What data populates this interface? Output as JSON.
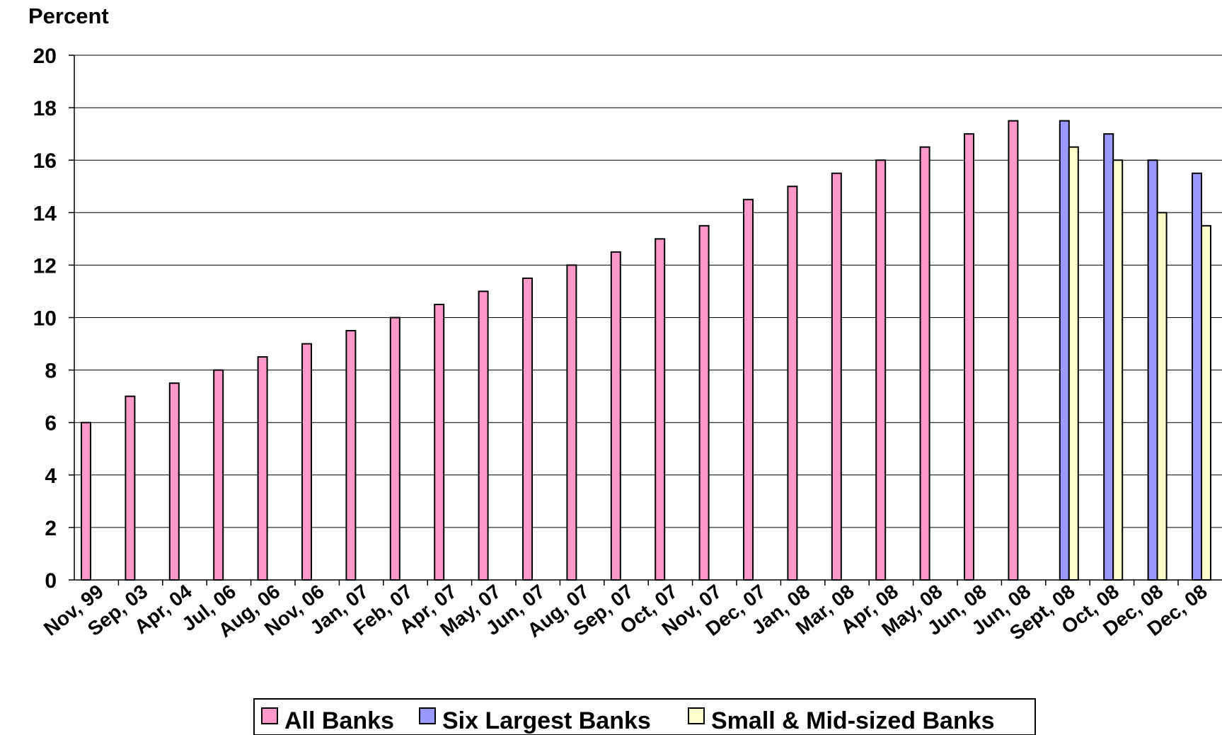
{
  "chart_data": {
    "type": "bar",
    "ylabel": "Percent",
    "xlabel": "",
    "ylim": [
      0,
      20
    ],
    "yticks": [
      0,
      2,
      4,
      6,
      8,
      10,
      12,
      14,
      16,
      18,
      20
    ],
    "grid": true,
    "legend_position": "bottom",
    "categories": [
      "Nov, 99",
      "Sep, 03",
      "Apr, 04",
      "Jul, 06",
      "Aug, 06",
      "Nov, 06",
      "Jan, 07",
      "Feb, 07",
      "Apr, 07",
      "May, 07",
      "Jun, 07",
      "Aug, 07",
      "Sep, 07",
      "Oct, 07",
      "Nov, 07",
      "Dec, 07",
      "Jan, 08",
      "Mar, 08",
      "Apr, 08",
      "May, 08",
      "Jun, 08",
      "Jun, 08",
      "Sept, 08",
      "Oct, 08",
      "Dec, 08",
      "Dec, 08"
    ],
    "series": [
      {
        "name": "All Banks",
        "color": "#ff99cc",
        "values": [
          6,
          7,
          7.5,
          8,
          8.5,
          9,
          9.5,
          10,
          10.5,
          11,
          11.5,
          12,
          12.5,
          13,
          13.5,
          14.5,
          15,
          15.5,
          16,
          16.5,
          17,
          17.5,
          null,
          null,
          null,
          null
        ]
      },
      {
        "name": "Six Largest Banks",
        "color": "#9999ff",
        "values": [
          null,
          null,
          null,
          null,
          null,
          null,
          null,
          null,
          null,
          null,
          null,
          null,
          null,
          null,
          null,
          null,
          null,
          null,
          null,
          null,
          null,
          null,
          17.5,
          17,
          16,
          15.5
        ]
      },
      {
        "name": "Small & Mid-sized Banks",
        "color": "#ffffcc",
        "values": [
          null,
          null,
          null,
          null,
          null,
          null,
          null,
          null,
          null,
          null,
          null,
          null,
          null,
          null,
          null,
          null,
          null,
          null,
          null,
          null,
          null,
          null,
          16.5,
          16,
          14,
          13.5
        ]
      }
    ]
  }
}
